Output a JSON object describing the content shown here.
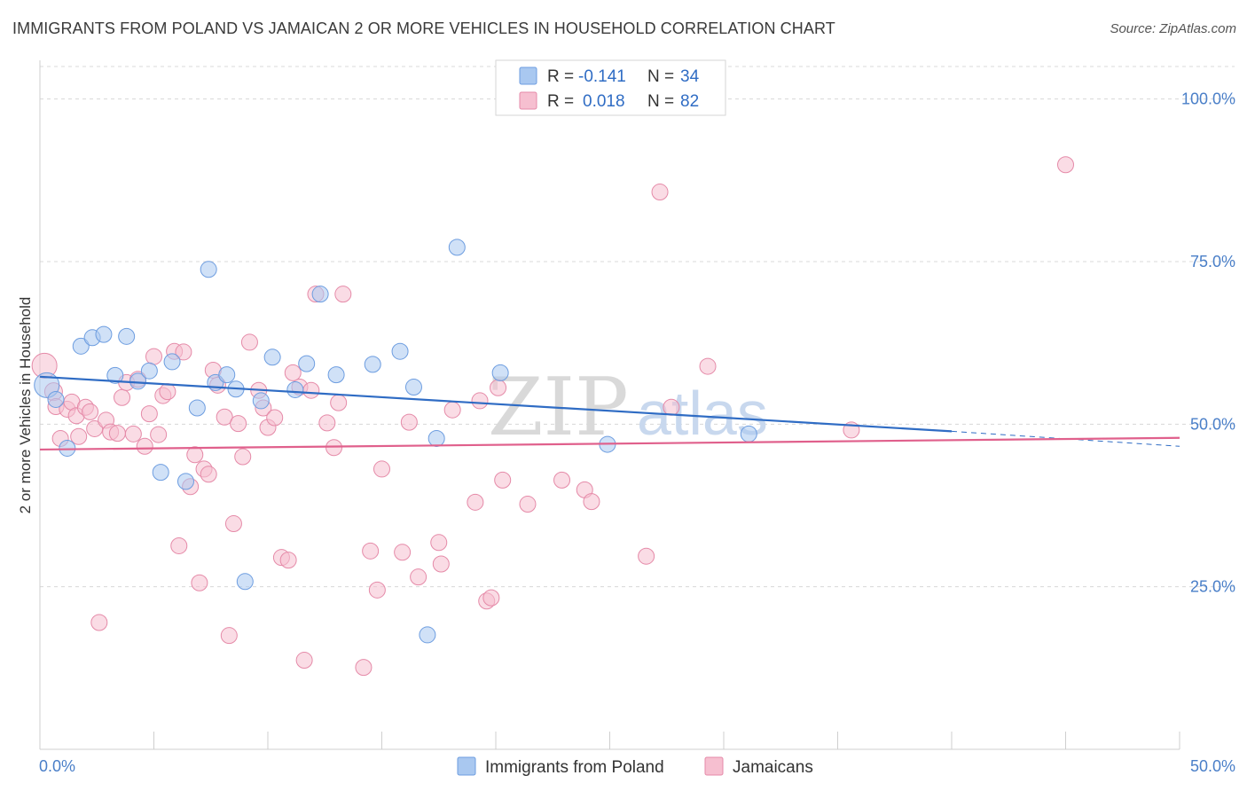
{
  "header": {
    "title": "IMMIGRANTS FROM POLAND VS JAMAICAN 2 OR MORE VEHICLES IN HOUSEHOLD CORRELATION CHART",
    "source": "Source: ZipAtlas.com"
  },
  "colors": {
    "poland_fill": "#a9c8f0",
    "poland_stroke": "#6d9de0",
    "poland_line": "#2f6cc4",
    "jamaica_fill": "#f6bfd0",
    "jamaica_stroke": "#e58aa8",
    "jamaica_line": "#e0608c",
    "grid": "#d8d8d8",
    "axis_text": "#4a7fc8"
  },
  "legend": {
    "row1": {
      "r_label": "R =",
      "r_value": "-0.141",
      "n_label": "N =",
      "n_value": "34"
    },
    "row2": {
      "r_label": "R =",
      "r_value": "0.018",
      "n_label": "N =",
      "n_value": "82"
    }
  },
  "watermark": {
    "zip": "ZIP",
    "atlas": "atlas"
  },
  "chart_data": {
    "type": "scatter",
    "title": "IMMIGRANTS FROM POLAND VS JAMAICAN 2 OR MORE VEHICLES IN HOUSEHOLD CORRELATION CHART",
    "xlabel": "",
    "ylabel": "2 or more Vehicles in Household",
    "xlim": [
      0,
      50
    ],
    "ylim": [
      0,
      105
    ],
    "x_tick_labels": [
      "0.0%",
      "50.0%"
    ],
    "y_ticks": [
      25,
      50,
      75,
      100
    ],
    "y_tick_labels": [
      "25.0%",
      "50.0%",
      "75.0%",
      "100.0%"
    ],
    "legend_position": "bottom",
    "series": [
      {
        "name": "Immigrants from Poland",
        "r": -0.141,
        "n": 34,
        "trend": {
          "x_start": 0,
          "y_start": 57.3,
          "x_end": 40,
          "y_end": 48.9,
          "x_dash_end": 50,
          "y_dash_end": 46.6
        },
        "points": [
          {
            "x": 0.3,
            "y": 56.0,
            "s": 14
          },
          {
            "x": 0.7,
            "y": 53.8,
            "s": 9
          },
          {
            "x": 1.2,
            "y": 46.3,
            "s": 9
          },
          {
            "x": 1.8,
            "y": 62.0,
            "s": 9
          },
          {
            "x": 2.3,
            "y": 63.3,
            "s": 9
          },
          {
            "x": 2.8,
            "y": 63.8,
            "s": 9
          },
          {
            "x": 3.3,
            "y": 57.5,
            "s": 9
          },
          {
            "x": 3.8,
            "y": 63.5,
            "s": 9
          },
          {
            "x": 4.3,
            "y": 56.6,
            "s": 9
          },
          {
            "x": 4.8,
            "y": 58.2,
            "s": 9
          },
          {
            "x": 5.3,
            "y": 42.6,
            "s": 9
          },
          {
            "x": 5.8,
            "y": 59.6,
            "s": 9
          },
          {
            "x": 6.4,
            "y": 41.2,
            "s": 9
          },
          {
            "x": 6.9,
            "y": 52.5,
            "s": 9
          },
          {
            "x": 7.4,
            "y": 73.8,
            "s": 9
          },
          {
            "x": 7.7,
            "y": 56.4,
            "s": 9
          },
          {
            "x": 8.2,
            "y": 57.6,
            "s": 9
          },
          {
            "x": 8.6,
            "y": 55.4,
            "s": 9
          },
          {
            "x": 9.0,
            "y": 25.8,
            "s": 9
          },
          {
            "x": 9.7,
            "y": 53.6,
            "s": 9
          },
          {
            "x": 10.2,
            "y": 60.3,
            "s": 9
          },
          {
            "x": 11.2,
            "y": 55.3,
            "s": 9
          },
          {
            "x": 11.7,
            "y": 59.3,
            "s": 9
          },
          {
            "x": 12.3,
            "y": 70.0,
            "s": 9
          },
          {
            "x": 13.0,
            "y": 57.6,
            "s": 9
          },
          {
            "x": 14.6,
            "y": 59.2,
            "s": 9
          },
          {
            "x": 15.8,
            "y": 61.2,
            "s": 9
          },
          {
            "x": 16.4,
            "y": 55.7,
            "s": 9
          },
          {
            "x": 17.4,
            "y": 47.8,
            "s": 9
          },
          {
            "x": 17.0,
            "y": 17.6,
            "s": 9
          },
          {
            "x": 18.3,
            "y": 77.2,
            "s": 9
          },
          {
            "x": 20.2,
            "y": 57.9,
            "s": 9
          },
          {
            "x": 24.9,
            "y": 46.9,
            "s": 9
          },
          {
            "x": 31.1,
            "y": 48.5,
            "s": 9
          }
        ]
      },
      {
        "name": "Jamaicans",
        "r": 0.018,
        "n": 82,
        "trend": {
          "x_start": 0,
          "y_start": 46.1,
          "x_end": 50,
          "y_end": 47.9
        },
        "points": [
          {
            "x": 0.2,
            "y": 59.0,
            "s": 14
          },
          {
            "x": 0.6,
            "y": 55.0,
            "s": 10
          },
          {
            "x": 0.7,
            "y": 52.7,
            "s": 9
          },
          {
            "x": 0.9,
            "y": 47.8,
            "s": 9
          },
          {
            "x": 1.2,
            "y": 52.3,
            "s": 9
          },
          {
            "x": 1.4,
            "y": 53.4,
            "s": 9
          },
          {
            "x": 1.6,
            "y": 51.3,
            "s": 9
          },
          {
            "x": 1.7,
            "y": 48.1,
            "s": 9
          },
          {
            "x": 2.0,
            "y": 52.6,
            "s": 9
          },
          {
            "x": 2.2,
            "y": 51.9,
            "s": 9
          },
          {
            "x": 2.4,
            "y": 49.3,
            "s": 9
          },
          {
            "x": 2.6,
            "y": 19.5,
            "s": 9
          },
          {
            "x": 2.9,
            "y": 50.6,
            "s": 9
          },
          {
            "x": 3.1,
            "y": 48.8,
            "s": 9
          },
          {
            "x": 3.4,
            "y": 48.6,
            "s": 9
          },
          {
            "x": 3.6,
            "y": 54.1,
            "s": 9
          },
          {
            "x": 3.8,
            "y": 56.4,
            "s": 9
          },
          {
            "x": 4.1,
            "y": 48.5,
            "s": 9
          },
          {
            "x": 4.3,
            "y": 56.9,
            "s": 9
          },
          {
            "x": 4.6,
            "y": 46.6,
            "s": 9
          },
          {
            "x": 4.8,
            "y": 51.6,
            "s": 9
          },
          {
            "x": 5.0,
            "y": 60.4,
            "s": 9
          },
          {
            "x": 5.2,
            "y": 48.4,
            "s": 9
          },
          {
            "x": 5.4,
            "y": 54.4,
            "s": 9
          },
          {
            "x": 5.6,
            "y": 55.0,
            "s": 9
          },
          {
            "x": 5.9,
            "y": 61.2,
            "s": 9
          },
          {
            "x": 6.1,
            "y": 31.3,
            "s": 9
          },
          {
            "x": 6.3,
            "y": 61.1,
            "s": 9
          },
          {
            "x": 6.6,
            "y": 40.4,
            "s": 9
          },
          {
            "x": 6.8,
            "y": 45.3,
            "s": 9
          },
          {
            "x": 7.0,
            "y": 25.6,
            "s": 9
          },
          {
            "x": 7.2,
            "y": 43.1,
            "s": 9
          },
          {
            "x": 7.4,
            "y": 42.3,
            "s": 9
          },
          {
            "x": 7.6,
            "y": 58.3,
            "s": 9
          },
          {
            "x": 7.8,
            "y": 56.0,
            "s": 9
          },
          {
            "x": 8.1,
            "y": 51.1,
            "s": 9
          },
          {
            "x": 8.3,
            "y": 17.5,
            "s": 9
          },
          {
            "x": 8.5,
            "y": 34.7,
            "s": 9
          },
          {
            "x": 8.7,
            "y": 50.1,
            "s": 9
          },
          {
            "x": 8.9,
            "y": 45.0,
            "s": 9
          },
          {
            "x": 9.2,
            "y": 62.6,
            "s": 9
          },
          {
            "x": 9.6,
            "y": 55.2,
            "s": 9
          },
          {
            "x": 9.8,
            "y": 52.5,
            "s": 9
          },
          {
            "x": 10.0,
            "y": 49.5,
            "s": 9
          },
          {
            "x": 10.3,
            "y": 51.0,
            "s": 9
          },
          {
            "x": 10.6,
            "y": 29.5,
            "s": 9
          },
          {
            "x": 10.9,
            "y": 29.1,
            "s": 9
          },
          {
            "x": 11.1,
            "y": 57.9,
            "s": 9
          },
          {
            "x": 11.4,
            "y": 55.7,
            "s": 9
          },
          {
            "x": 11.6,
            "y": 13.7,
            "s": 9
          },
          {
            "x": 11.9,
            "y": 55.2,
            "s": 9
          },
          {
            "x": 12.1,
            "y": 70.0,
            "s": 9
          },
          {
            "x": 12.6,
            "y": 50.2,
            "s": 9
          },
          {
            "x": 12.9,
            "y": 46.4,
            "s": 9
          },
          {
            "x": 13.1,
            "y": 53.3,
            "s": 9
          },
          {
            "x": 13.3,
            "y": 70.0,
            "s": 9
          },
          {
            "x": 14.2,
            "y": 12.6,
            "s": 9
          },
          {
            "x": 14.5,
            "y": 30.5,
            "s": 9
          },
          {
            "x": 14.8,
            "y": 24.5,
            "s": 9
          },
          {
            "x": 15.0,
            "y": 43.1,
            "s": 9
          },
          {
            "x": 15.9,
            "y": 30.3,
            "s": 9
          },
          {
            "x": 16.2,
            "y": 50.3,
            "s": 9
          },
          {
            "x": 16.6,
            "y": 26.5,
            "s": 9
          },
          {
            "x": 17.5,
            "y": 31.8,
            "s": 9
          },
          {
            "x": 17.6,
            "y": 28.5,
            "s": 9
          },
          {
            "x": 18.1,
            "y": 52.2,
            "s": 9
          },
          {
            "x": 19.1,
            "y": 38.0,
            "s": 9
          },
          {
            "x": 19.3,
            "y": 53.6,
            "s": 9
          },
          {
            "x": 19.6,
            "y": 22.8,
            "s": 9
          },
          {
            "x": 19.8,
            "y": 23.3,
            "s": 9
          },
          {
            "x": 20.1,
            "y": 55.6,
            "s": 9
          },
          {
            "x": 20.3,
            "y": 41.4,
            "s": 9
          },
          {
            "x": 21.4,
            "y": 37.7,
            "s": 9
          },
          {
            "x": 22.9,
            "y": 41.4,
            "s": 9
          },
          {
            "x": 23.9,
            "y": 39.9,
            "s": 9
          },
          {
            "x": 24.2,
            "y": 38.1,
            "s": 9
          },
          {
            "x": 26.6,
            "y": 29.7,
            "s": 9
          },
          {
            "x": 27.2,
            "y": 85.7,
            "s": 9
          },
          {
            "x": 27.7,
            "y": 52.6,
            "s": 9
          },
          {
            "x": 29.3,
            "y": 58.9,
            "s": 9
          },
          {
            "x": 35.6,
            "y": 49.1,
            "s": 9
          },
          {
            "x": 45.0,
            "y": 89.9,
            "s": 9
          }
        ]
      }
    ]
  }
}
